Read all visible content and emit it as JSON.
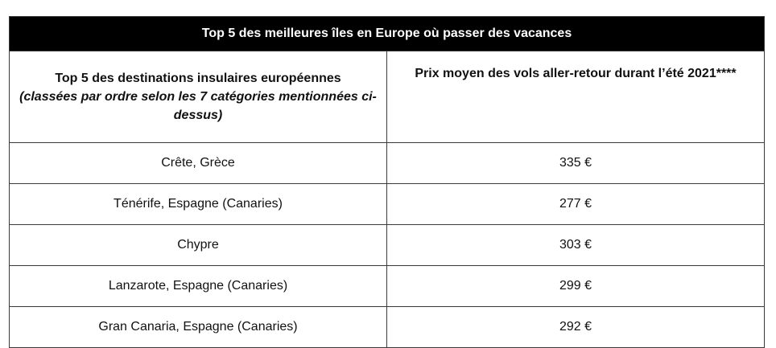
{
  "table": {
    "title": "Top 5 des meilleures îles en Europe où passer des vacances",
    "headers": {
      "destination": "Top 5 des destinations insulaires européennes",
      "destination_note": "(classées par ordre selon les 7 catégories mentionnées ci-dessus)",
      "price": "Prix moyen des vols aller-retour durant l’été 2021****"
    },
    "rows": [
      {
        "destination": "Crête, Grèce",
        "price": "335 €"
      },
      {
        "destination": "Ténérife, Espagne (Canaries)",
        "price": "277 €"
      },
      {
        "destination": "Chypre",
        "price": "303 €"
      },
      {
        "destination": "Lanzarote, Espagne (Canaries)",
        "price": "299 €"
      },
      {
        "destination": "Gran Canaria, Espagne (Canaries)",
        "price": "292 €"
      }
    ]
  },
  "colors": {
    "title_background": "#000000",
    "title_text": "#ffffff",
    "border": "#3a3a3a",
    "text": "#111111"
  }
}
